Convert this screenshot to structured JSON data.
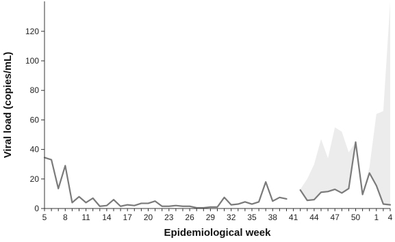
{
  "chart_data": {
    "type": "line",
    "title": "",
    "xlabel": "Epidemiological week",
    "ylabel": "Viral load (copies/mL)",
    "ylim": [
      0,
      140
    ],
    "yticks": [
      0,
      20,
      40,
      60,
      80,
      100,
      120
    ],
    "x_tick_labels": [
      "5",
      "8",
      "11",
      "14",
      "17",
      "20",
      "23",
      "26",
      "29",
      "32",
      "35",
      "38",
      "41",
      "44",
      "47",
      "50",
      "1",
      "4"
    ],
    "x_tick_step": 3,
    "grid": false,
    "legend": "none",
    "colors": {
      "line": "#7a7a7a",
      "band": "#ececec",
      "axis": "#333333"
    },
    "series": [
      {
        "values": [
          34.5,
          33,
          13.5,
          29,
          4,
          8,
          4,
          7,
          1.5,
          2,
          6,
          1.5,
          2.5,
          2,
          3.5,
          3.5,
          5,
          1.5,
          1.5,
          2,
          1.5,
          1.5,
          0.5,
          0.5,
          1,
          1,
          7.5,
          2.5,
          3,
          4.5,
          3,
          4.5,
          18,
          5,
          7.5,
          6.5,
          null,
          12.5,
          5.5,
          6,
          11,
          11.5,
          13,
          10.5,
          13.5,
          45,
          9.5,
          24,
          15.5,
          3,
          2.5
        ]
      }
    ],
    "band": {
      "start_index": 37,
      "lower": [
        12.5,
        5.5,
        6,
        11,
        11.5,
        13,
        10.5,
        13.5,
        45,
        9.5,
        24,
        15.5,
        3,
        2.5
      ],
      "upper": [
        13,
        20,
        30,
        47,
        34,
        55,
        52,
        38,
        45,
        10,
        28,
        64,
        66,
        140
      ]
    }
  }
}
